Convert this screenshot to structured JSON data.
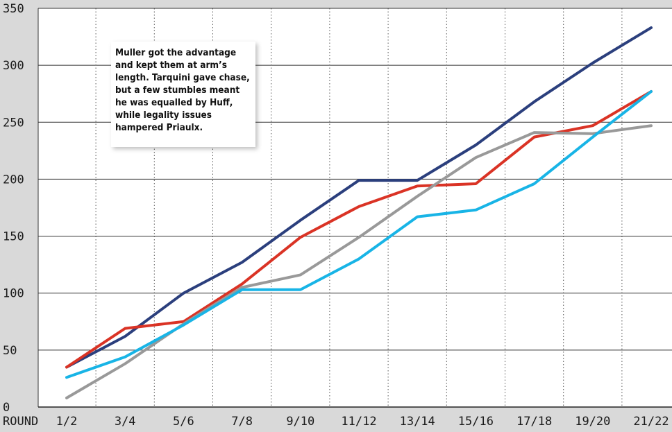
{
  "chart_data": {
    "type": "line",
    "title": "",
    "xlabel": "ROUND",
    "ylabel": "",
    "ylim": [
      0,
      350
    ],
    "yticks": [
      0,
      50,
      100,
      150,
      200,
      250,
      300,
      350
    ],
    "grid": true,
    "categories": [
      "1/2",
      "3/4",
      "5/6",
      "7/8",
      "9/10",
      "11/12",
      "13/14",
      "15/16",
      "17/18",
      "19/20",
      "21/22"
    ],
    "series": [
      {
        "color": "#2b3f7d",
        "values": [
          35,
          62,
          100,
          127,
          164,
          199,
          199,
          230,
          268,
          302,
          333
        ]
      },
      {
        "color": "#da3325",
        "values": [
          35,
          69,
          75,
          108,
          149,
          176,
          194,
          196,
          237,
          247,
          277
        ]
      },
      {
        "color": "#999999",
        "values": [
          8,
          38,
          73,
          105,
          116,
          149,
          185,
          219,
          241,
          240,
          247
        ]
      },
      {
        "color": "#18b4e6",
        "values": [
          26,
          44,
          72,
          103,
          103,
          130,
          167,
          173,
          196,
          237,
          277
        ]
      }
    ]
  },
  "annotation": {
    "text": "Muller got the advantage and kept them at arm’s length. Tarquini gave chase, but a few stumbles meant he was equalled by Huff, while legality issues hampered Priaulx."
  }
}
